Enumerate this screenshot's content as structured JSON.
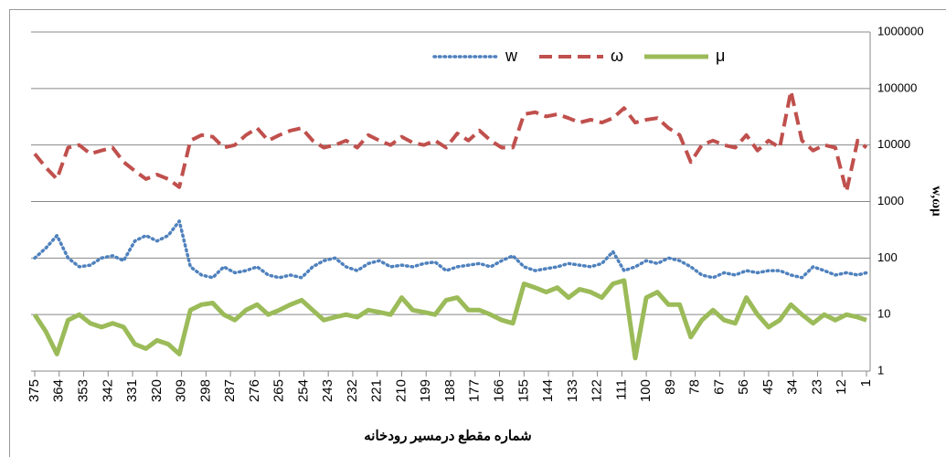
{
  "chart_data": {
    "type": "line",
    "xlabel": "شماره مقطع درمسیر رودخانه",
    "ylabel": "w,ωμ",
    "yscale": "log",
    "grid": true,
    "legend": "top",
    "y_axis_side": "right",
    "xlim": [
      375,
      1
    ],
    "xticks": [
      375,
      364,
      353,
      342,
      331,
      320,
      309,
      298,
      287,
      276,
      265,
      254,
      243,
      232,
      221,
      210,
      199,
      188,
      177,
      166,
      155,
      144,
      133,
      122,
      111,
      100,
      89,
      78,
      67,
      56,
      45,
      34,
      23,
      12,
      1
    ],
    "ylim": [
      1,
      1000000
    ],
    "yticks": [
      1,
      10,
      100,
      1000,
      10000,
      100000,
      1000000
    ],
    "x": [
      375,
      370,
      365,
      360,
      355,
      350,
      345,
      340,
      335,
      330,
      325,
      320,
      315,
      310,
      305,
      300,
      295,
      290,
      285,
      280,
      275,
      270,
      265,
      260,
      255,
      250,
      245,
      240,
      235,
      230,
      225,
      220,
      215,
      210,
      205,
      200,
      195,
      190,
      185,
      180,
      175,
      170,
      165,
      160,
      155,
      150,
      145,
      140,
      135,
      130,
      125,
      120,
      115,
      110,
      105,
      100,
      95,
      90,
      85,
      80,
      75,
      70,
      65,
      60,
      55,
      50,
      45,
      40,
      35,
      30,
      25,
      20,
      15,
      10,
      5,
      1
    ],
    "series": [
      {
        "name": "w",
        "color": "#4f81bd",
        "style": "dotted",
        "values": [
          100,
          150,
          250,
          100,
          70,
          75,
          100,
          110,
          90,
          200,
          250,
          200,
          250,
          450,
          70,
          50,
          45,
          70,
          55,
          60,
          70,
          50,
          45,
          50,
          45,
          70,
          90,
          100,
          70,
          60,
          80,
          90,
          70,
          75,
          70,
          80,
          85,
          60,
          70,
          75,
          80,
          70,
          90,
          110,
          70,
          60,
          65,
          70,
          80,
          75,
          70,
          80,
          130,
          60,
          70,
          90,
          80,
          100,
          90,
          70,
          50,
          45,
          55,
          50,
          60,
          55,
          60,
          60,
          50,
          45,
          70,
          60,
          50,
          55,
          50,
          55
        ]
      },
      {
        "name": "ω",
        "color": "#c0504d",
        "style": "dashed",
        "values": [
          7000,
          4000,
          2500,
          9000,
          10000,
          7000,
          8000,
          9000,
          5000,
          3500,
          2500,
          3000,
          2500,
          1800,
          12000,
          15000,
          14000,
          9000,
          10000,
          15000,
          20000,
          12000,
          15000,
          18000,
          20000,
          12000,
          9000,
          10000,
          12000,
          9000,
          15000,
          12000,
          10000,
          14000,
          11000,
          10000,
          12000,
          9000,
          16000,
          12000,
          18000,
          12000,
          9000,
          9000,
          35000,
          38000,
          32000,
          35000,
          30000,
          25000,
          28000,
          25000,
          30000,
          45000,
          25000,
          28000,
          30000,
          20000,
          15000,
          5000,
          10000,
          12000,
          10000,
          9000,
          15000,
          8000,
          12000,
          9000,
          90000,
          12000,
          8000,
          10000,
          9000,
          1500,
          12000,
          9000
        ]
      },
      {
        "name": "μ",
        "color": "#9bbb59",
        "style": "solid",
        "values": [
          10,
          5,
          2,
          8,
          10,
          7,
          6,
          7,
          6,
          3,
          2.5,
          3.5,
          3,
          2,
          12,
          15,
          16,
          10,
          8,
          12,
          15,
          10,
          12,
          15,
          18,
          12,
          8,
          9,
          10,
          9,
          12,
          11,
          10,
          20,
          12,
          11,
          10,
          18,
          20,
          12,
          12,
          10,
          8,
          7,
          35,
          30,
          25,
          30,
          20,
          28,
          25,
          20,
          35,
          40,
          1.7,
          20,
          25,
          15,
          15,
          4,
          8,
          12,
          8,
          7,
          20,
          10,
          6,
          8,
          15,
          10,
          7,
          10,
          8,
          10,
          9,
          8
        ]
      }
    ]
  }
}
